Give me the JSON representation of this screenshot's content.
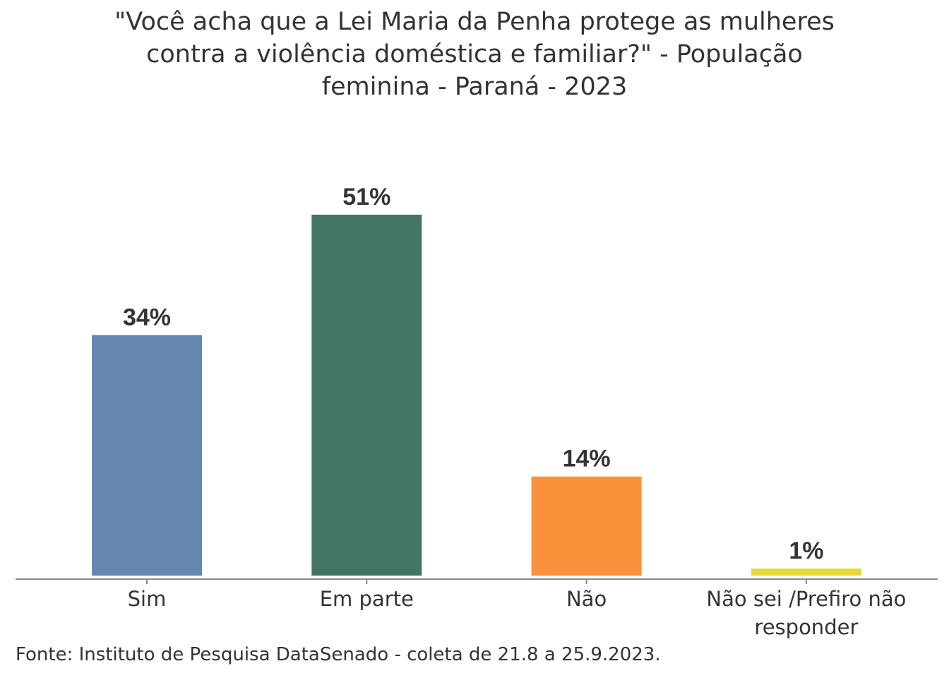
{
  "chart_data": {
    "type": "bar",
    "title_lines": [
      "\"Você acha que a Lei Maria da Penha protege as mulheres",
      "contra a violência doméstica e familiar?\" - População",
      "feminina - Paraná - 2023"
    ],
    "categories": [
      [
        "Sim"
      ],
      [
        "Em parte"
      ],
      [
        "Não"
      ],
      [
        "Não sei /Prefiro não",
        "responder"
      ]
    ],
    "values": [
      34,
      51,
      14,
      1
    ],
    "data_labels": [
      "34%",
      "51%",
      "14%",
      "1%"
    ],
    "colors": [
      "#6688b0",
      "#447562",
      "#fb913b",
      "#e6d838"
    ],
    "ylim": [
      0,
      51
    ],
    "xlabel": "",
    "ylabel": "",
    "grid": false,
    "legend": "none"
  },
  "source": "Fonte: Instituto de Pesquisa DataSenado - coleta de 21.8 a 25.9.2023."
}
